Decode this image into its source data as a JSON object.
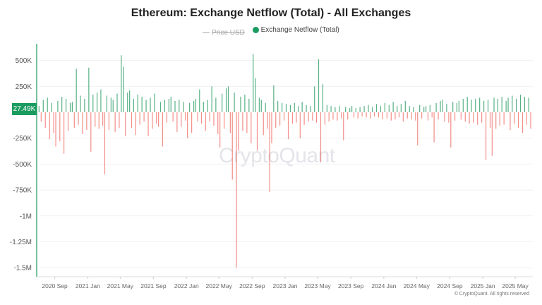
{
  "colors": {
    "positive": "#2e9e66",
    "negative": "#ee5e55",
    "axis": "#1a9b5f",
    "badge": "#1a9b5f",
    "price_legend": "#aaaaaa"
  },
  "watermark": "CryptoQuant",
  "copyright": "© CryptoQuant. All rights reserved",
  "current_value_badge": "27.49K",
  "chart_data": {
    "type": "bar",
    "title": "Ethereum: Exchange Netflow (Total) - All Exchanges",
    "legend": [
      {
        "name": "Price USD",
        "hidden": true
      },
      {
        "name": "Exchange Netflow (Total)",
        "hidden": false
      }
    ],
    "legend_position": "top-center",
    "grid": true,
    "ylim": [
      -1600000,
      650000
    ],
    "y_ticks": [
      500000,
      250000,
      -250000,
      -500000,
      -750000,
      -1000000,
      -1250000,
      -1500000
    ],
    "y_tick_labels": [
      "500K",
      "250K",
      "-250K",
      "-500K",
      "-750K",
      "-1M",
      "-1.25M",
      "-1.5M"
    ],
    "xlim": [
      "2020-07-04",
      "2025-07-05"
    ],
    "x_ticks": [
      "2020-09-01",
      "2021-01-01",
      "2021-05-01",
      "2021-09-01",
      "2022-01-01",
      "2022-05-01",
      "2022-09-01",
      "2023-01-01",
      "2023-05-01",
      "2023-09-01",
      "2024-01-01",
      "2024-05-01",
      "2024-09-01",
      "2025-01-01",
      "2025-05-01"
    ],
    "x_tick_labels": [
      "2020 Sep",
      "2021 Jan",
      "2021 May",
      "2021 Sep",
      "2022 Jan",
      "2022 May",
      "2022 Sep",
      "2023 Jan",
      "2023 May",
      "2023 Sep",
      "2024 Jan",
      "2024 May",
      "2024 Sep",
      "2025 Jan",
      "2025 May"
    ],
    "series": [
      {
        "name": "Exchange Netflow (Total)",
        "monthly": [
          {
            "month": "2020-07",
            "values": [
              60000,
              -90000,
              120000,
              -150000
            ]
          },
          {
            "month": "2020-08",
            "values": [
              140000,
              -260000,
              90000,
              -200000
            ]
          },
          {
            "month": "2020-09",
            "values": [
              -330000,
              110000,
              -280000,
              150000
            ]
          },
          {
            "month": "2020-10",
            "values": [
              -400000,
              130000,
              -180000,
              90000
            ]
          },
          {
            "month": "2020-11",
            "values": [
              100000,
              -150000,
              420000,
              -120000
            ]
          },
          {
            "month": "2020-12",
            "values": [
              160000,
              -210000,
              130000,
              -170000
            ]
          },
          {
            "month": "2021-01",
            "values": [
              430000,
              -380000,
              170000,
              -140000
            ]
          },
          {
            "month": "2021-02",
            "values": [
              190000,
              -160000,
              220000,
              -130000
            ]
          },
          {
            "month": "2021-03",
            "values": [
              -600000,
              160000,
              -170000,
              140000
            ]
          },
          {
            "month": "2021-04",
            "values": [
              120000,
              -190000,
              180000,
              -150000
            ]
          },
          {
            "month": "2021-05",
            "values": [
              550000,
              440000,
              -230000,
              190000
            ]
          },
          {
            "month": "2021-06",
            "values": [
              210000,
              -150000,
              130000,
              -220000
            ]
          },
          {
            "month": "2021-07",
            "values": [
              170000,
              -120000,
              150000,
              -90000
            ]
          },
          {
            "month": "2021-08",
            "values": [
              120000,
              -230000,
              140000,
              -160000
            ]
          },
          {
            "month": "2021-09",
            "values": [
              180000,
              -110000,
              -140000,
              100000
            ]
          },
          {
            "month": "2021-10",
            "values": [
              -330000,
              120000,
              -100000,
              130000
            ]
          },
          {
            "month": "2021-11",
            "values": [
              150000,
              -90000,
              110000,
              -190000
            ]
          },
          {
            "month": "2021-12",
            "values": [
              120000,
              -140000,
              100000,
              -80000
            ]
          },
          {
            "month": "2022-01",
            "values": [
              -250000,
              90000,
              -200000,
              110000
            ]
          },
          {
            "month": "2022-02",
            "values": [
              130000,
              -90000,
              220000,
              -110000
            ]
          },
          {
            "month": "2022-03",
            "values": [
              100000,
              -180000,
              120000,
              -90000
            ]
          },
          {
            "month": "2022-04",
            "values": [
              250000,
              -130000,
              140000,
              -210000
            ]
          },
          {
            "month": "2022-05",
            "values": [
              -340000,
              180000,
              -160000,
              230000
            ]
          },
          {
            "month": "2022-06",
            "values": [
              250000,
              -200000,
              -650000,
              190000
            ]
          },
          {
            "month": "2022-07",
            "values": [
              -1500000,
              -370000,
              150000,
              -180000
            ]
          },
          {
            "month": "2022-08",
            "values": [
              170000,
              -200000,
              130000,
              -300000
            ]
          },
          {
            "month": "2022-09",
            "values": [
              560000,
              330000,
              -370000,
              140000
            ]
          },
          {
            "month": "2022-10",
            "values": [
              120000,
              -220000,
              90000,
              -160000
            ]
          },
          {
            "month": "2022-11",
            "values": [
              -770000,
              -300000,
              260000,
              -150000
            ]
          },
          {
            "month": "2022-12",
            "values": [
              110000,
              -130000,
              90000,
              -80000
            ]
          },
          {
            "month": "2023-01",
            "values": [
              80000,
              -260000,
              70000,
              -110000
            ]
          },
          {
            "month": "2023-02",
            "values": [
              90000,
              -100000,
              60000,
              -250000
            ]
          },
          {
            "month": "2023-03",
            "values": [
              100000,
              -120000,
              70000,
              -90000
            ]
          },
          {
            "month": "2023-04",
            "values": [
              60000,
              -80000,
              250000,
              -100000
            ]
          },
          {
            "month": "2023-05",
            "values": [
              510000,
              -480000,
              270000,
              -120000
            ]
          },
          {
            "month": "2023-06",
            "values": [
              70000,
              -90000,
              60000,
              -70000
            ]
          },
          {
            "month": "2023-07",
            "values": [
              50000,
              -80000,
              60000,
              -60000
            ]
          },
          {
            "month": "2023-08",
            "values": [
              -270000,
              50000,
              -70000,
              40000
            ]
          },
          {
            "month": "2023-09",
            "values": [
              60000,
              -50000,
              40000,
              -60000
            ]
          },
          {
            "month": "2023-10",
            "values": [
              50000,
              -40000,
              60000,
              -50000
            ]
          },
          {
            "month": "2023-11",
            "values": [
              70000,
              -60000,
              50000,
              -40000
            ]
          },
          {
            "month": "2023-12",
            "values": [
              80000,
              -50000,
              60000,
              -70000
            ]
          },
          {
            "month": "2024-01",
            "values": [
              90000,
              -60000,
              70000,
              -80000
            ]
          },
          {
            "month": "2024-02",
            "values": [
              100000,
              -70000,
              60000,
              -50000
            ]
          },
          {
            "month": "2024-03",
            "values": [
              80000,
              -90000,
              110000,
              -60000
            ]
          },
          {
            "month": "2024-04",
            "values": [
              60000,
              -70000,
              50000,
              -80000
            ]
          },
          {
            "month": "2024-05",
            "values": [
              -320000,
              70000,
              -60000,
              50000
            ]
          },
          {
            "month": "2024-06",
            "values": [
              60000,
              -80000,
              70000,
              -50000
            ]
          },
          {
            "month": "2024-07",
            "values": [
              -290000,
              90000,
              -70000,
              110000
            ]
          },
          {
            "month": "2024-08",
            "values": [
              120000,
              -90000,
              80000,
              -100000
            ]
          },
          {
            "month": "2024-09",
            "values": [
              -340000,
              100000,
              -80000,
              90000
            ]
          },
          {
            "month": "2024-10",
            "values": [
              110000,
              -70000,
              130000,
              -90000
            ]
          },
          {
            "month": "2024-11",
            "values": [
              150000,
              -110000,
              120000,
              -100000
            ]
          },
          {
            "month": "2024-12",
            "values": [
              130000,
              -120000,
              140000,
              -100000
            ]
          },
          {
            "month": "2025-01",
            "values": [
              110000,
              -460000,
              120000,
              -150000
            ]
          },
          {
            "month": "2025-02",
            "values": [
              -420000,
              140000,
              -160000,
              130000
            ]
          },
          {
            "month": "2025-03",
            "values": [
              -130000,
              150000,
              -120000,
              110000
            ]
          },
          {
            "month": "2025-04",
            "values": [
              140000,
              -170000,
              160000,
              -110000
            ]
          },
          {
            "month": "2025-05",
            "values": [
              130000,
              -150000,
              170000,
              -200000
            ]
          },
          {
            "month": "2025-06",
            "values": [
              150000,
              -120000,
              140000,
              -160000
            ]
          }
        ]
      }
    ]
  }
}
